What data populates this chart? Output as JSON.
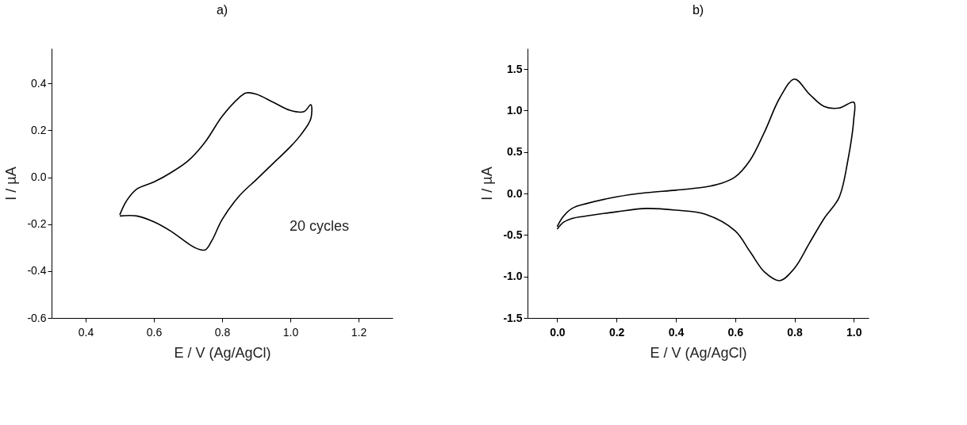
{
  "chart_data": [
    {
      "type": "line",
      "title": "a)",
      "xlabel": "E / V (Ag/AgCl)",
      "ylabel": "I / µA",
      "xlim": [
        0.3,
        1.3
      ],
      "xticks": [
        {
          "value": 0.4,
          "label": "0.4"
        },
        {
          "value": 0.6,
          "label": "0.6"
        },
        {
          "value": 0.8,
          "label": "0.8"
        },
        {
          "value": 1.0,
          "label": "1.0"
        },
        {
          "value": 1.2,
          "label": "1.2"
        }
      ],
      "ylim": [
        -0.6,
        0.55
      ],
      "yticks": [
        {
          "value": -0.6,
          "label": "-0.6"
        },
        {
          "value": -0.4,
          "label": "-0.4"
        },
        {
          "value": -0.2,
          "label": "-0.2"
        },
        {
          "value": 0.0,
          "label": "0.0"
        },
        {
          "value": 0.2,
          "label": "0.2"
        },
        {
          "value": 0.4,
          "label": "0.4"
        }
      ],
      "grid": false,
      "annotations": [
        "20 cycles"
      ],
      "series": [
        {
          "color": "#000000",
          "x": [
            0.5,
            0.52,
            0.55,
            0.6,
            0.65,
            0.7,
            0.75,
            0.8,
            0.85,
            0.87,
            0.9,
            0.95,
            1.0,
            1.04,
            1.06,
            1.06,
            1.03,
            1.0,
            0.95,
            0.9,
            0.85,
            0.8,
            0.77,
            0.75,
            0.72,
            0.65,
            0.6,
            0.55,
            0.5
          ],
          "values": [
            -0.16,
            -0.1,
            -0.05,
            -0.02,
            0.02,
            0.07,
            0.15,
            0.26,
            0.34,
            0.36,
            0.355,
            0.32,
            0.285,
            0.28,
            0.31,
            0.25,
            0.18,
            0.13,
            0.06,
            -0.01,
            -0.08,
            -0.18,
            -0.27,
            -0.31,
            -0.3,
            -0.23,
            -0.19,
            -0.165,
            -0.165
          ]
        }
      ]
    },
    {
      "type": "line",
      "title": "b)",
      "xlabel": "E / V  (Ag/AgCl)",
      "ylabel": "I / µA",
      "xlim": [
        -0.1,
        1.05
      ],
      "xticks": [
        {
          "value": 0.0,
          "label": "0.0"
        },
        {
          "value": 0.2,
          "label": "0.2"
        },
        {
          "value": 0.4,
          "label": "0.4"
        },
        {
          "value": 0.6,
          "label": "0.6"
        },
        {
          "value": 0.8,
          "label": "0.8"
        },
        {
          "value": 1.0,
          "label": "1.0"
        }
      ],
      "ylim": [
        -1.5,
        1.75
      ],
      "yticks": [
        {
          "value": -1.5,
          "label": "-1.5"
        },
        {
          "value": -1.0,
          "label": "-1.0"
        },
        {
          "value": -0.5,
          "label": "-0.5"
        },
        {
          "value": 0.0,
          "label": "0.0"
        },
        {
          "value": 0.5,
          "label": "0.5"
        },
        {
          "value": 1.0,
          "label": "1.0"
        },
        {
          "value": 1.5,
          "label": "1.5"
        }
      ],
      "grid": false,
      "series": [
        {
          "color": "#000000",
          "x": [
            0.0,
            0.02,
            0.05,
            0.1,
            0.2,
            0.3,
            0.4,
            0.5,
            0.55,
            0.6,
            0.65,
            0.7,
            0.75,
            0.8,
            0.85,
            0.9,
            0.95,
            1.0,
            1.0,
            0.98,
            0.95,
            0.9,
            0.85,
            0.8,
            0.75,
            0.7,
            0.65,
            0.6,
            0.5,
            0.4,
            0.3,
            0.2,
            0.1,
            0.05,
            0.02,
            0.0
          ],
          "values": [
            -0.4,
            -0.28,
            -0.18,
            -0.12,
            -0.04,
            0.01,
            0.04,
            0.08,
            0.12,
            0.2,
            0.4,
            0.75,
            1.15,
            1.38,
            1.2,
            1.05,
            1.03,
            1.1,
            0.9,
            0.4,
            -0.05,
            -0.3,
            -0.6,
            -0.9,
            -1.05,
            -0.95,
            -0.7,
            -0.45,
            -0.25,
            -0.2,
            -0.18,
            -0.22,
            -0.27,
            -0.3,
            -0.35,
            -0.43
          ]
        }
      ]
    }
  ]
}
